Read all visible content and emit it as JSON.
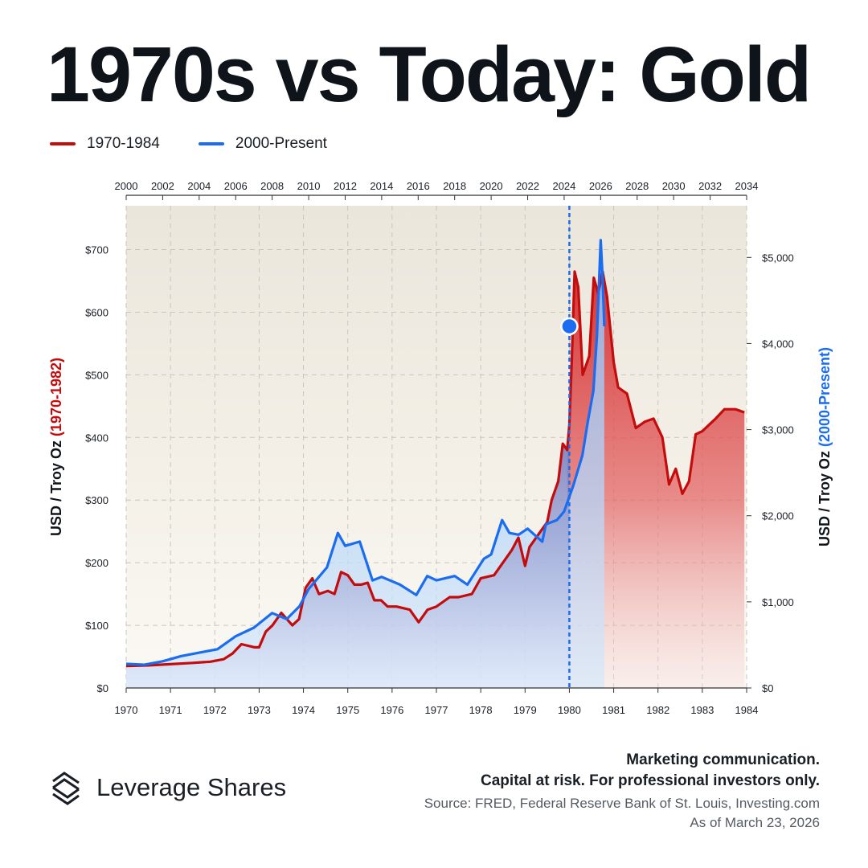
{
  "header": {
    "title": "1970s vs Today: Gold"
  },
  "legend": [
    {
      "label": "1970-1984",
      "color": "#c40c0c"
    },
    {
      "label": "2000-Present",
      "color": "#1a6cf0"
    }
  ],
  "chart_data": {
    "type": "line",
    "bottom_axis": {
      "ticks": [
        "1970",
        "1971",
        "1972",
        "1973",
        "1974",
        "1975",
        "1976",
        "1977",
        "1978",
        "1979",
        "1980",
        "1981",
        "1982",
        "1983",
        "1984"
      ],
      "range": [
        1970,
        1984
      ]
    },
    "top_axis": {
      "ticks": [
        "2000",
        "2002",
        "2004",
        "2006",
        "2008",
        "2010",
        "2012",
        "2014",
        "2016",
        "2018",
        "2020",
        "2022",
        "2024",
        "2026",
        "2028",
        "2030",
        "2032",
        "2034"
      ],
      "range": [
        2000,
        2034
      ]
    },
    "left_axis": {
      "label_prefix": "USD / Troy Oz ",
      "label_highlight": "(1970-1982)",
      "ticks": [
        "$0",
        "$100",
        "$200",
        "$300",
        "$400",
        "$500",
        "$600",
        "$700"
      ],
      "ylim": [
        0,
        770
      ]
    },
    "right_axis": {
      "label_prefix": "USD / Troy Oz ",
      "label_highlight": "(2000-Present)",
      "ticks": [
        "$0",
        "$1,000",
        "$2,000",
        "$3,000",
        "$4,000",
        "$5,000"
      ],
      "ylim": [
        0,
        5600
      ]
    },
    "grid": true,
    "series": [
      {
        "name": "1970-1984",
        "color": "#c40c0c",
        "axis": "left",
        "x": [
          1970.0,
          1970.5,
          1971.0,
          1971.5,
          1971.9,
          1972.2,
          1972.4,
          1972.6,
          1972.9,
          1973.0,
          1973.15,
          1973.3,
          1973.5,
          1973.75,
          1973.9,
          1974.05,
          1974.2,
          1974.35,
          1974.55,
          1974.7,
          1974.85,
          1975.0,
          1975.15,
          1975.3,
          1975.45,
          1975.6,
          1975.75,
          1975.9,
          1976.1,
          1976.4,
          1976.6,
          1976.8,
          1977.0,
          1977.3,
          1977.5,
          1977.8,
          1978.0,
          1978.3,
          1978.5,
          1978.7,
          1978.85,
          1979.0,
          1979.1,
          1979.2,
          1979.35,
          1979.5,
          1979.6,
          1979.75,
          1979.85,
          1979.95,
          1980.0,
          1980.05,
          1980.12,
          1980.2,
          1980.3,
          1980.45,
          1980.55,
          1980.65,
          1980.75,
          1980.85,
          1981.0,
          1981.1,
          1981.3,
          1981.5,
          1981.7,
          1981.9,
          1982.1,
          1982.25,
          1982.4,
          1982.55,
          1982.7,
          1982.85,
          1983.0,
          1983.15,
          1983.3,
          1983.5,
          1983.75,
          1983.95
        ],
        "y": [
          35,
          36,
          38,
          40,
          42,
          46,
          55,
          70,
          65,
          65,
          90,
          100,
          120,
          100,
          110,
          160,
          175,
          150,
          155,
          150,
          185,
          180,
          165,
          165,
          168,
          140,
          140,
          130,
          130,
          125,
          105,
          125,
          130,
          145,
          145,
          150,
          175,
          180,
          200,
          220,
          240,
          195,
          225,
          235,
          250,
          265,
          300,
          330,
          390,
          380,
          420,
          515,
          665,
          640,
          500,
          530,
          655,
          630,
          665,
          625,
          520,
          480,
          470,
          415,
          425,
          430,
          400,
          325,
          350,
          310,
          330,
          405,
          410,
          420,
          430,
          445,
          445,
          440
        ]
      },
      {
        "name": "2000-Present",
        "color": "#1a6cf0",
        "axis": "right",
        "x": [
          2000,
          2001,
          2002,
          2003,
          2004,
          2005,
          2006,
          2007,
          2008,
          2008.8,
          2009.5,
          2010,
          2011,
          2011.6,
          2012,
          2012.8,
          2013.5,
          2014,
          2015,
          2015.9,
          2016.5,
          2017,
          2018,
          2018.7,
          2019,
          2019.6,
          2020,
          2020.6,
          2021,
          2021.5,
          2022,
          2022.8,
          2023,
          2023.6,
          2024,
          2024.5,
          2025,
          2025.3,
          2025.6,
          2025.8,
          2026,
          2026.1,
          2026.2
        ],
        "y": [
          280,
          270,
          310,
          370,
          410,
          450,
          600,
          700,
          870,
          800,
          950,
          1150,
          1400,
          1800,
          1650,
          1700,
          1250,
          1290,
          1200,
          1080,
          1300,
          1250,
          1300,
          1200,
          1300,
          1500,
          1550,
          1950,
          1800,
          1780,
          1850,
          1700,
          1900,
          1950,
          2050,
          2350,
          2700,
          3100,
          3450,
          4100,
          5200,
          4800,
          4200
        ]
      }
    ],
    "current_marker": {
      "x": 1980,
      "series": "2000-Present",
      "value": 4200
    }
  },
  "footer": {
    "brand": "Leverage Shares",
    "disclaimer_line1": "Marketing communication.",
    "disclaimer_line2": "Capital at risk. For professional investors only.",
    "source_line1": "Source: FRED, Federal Reserve Bank of St. Louis, Investing.com",
    "source_line2": "As of March 23, 2026"
  }
}
